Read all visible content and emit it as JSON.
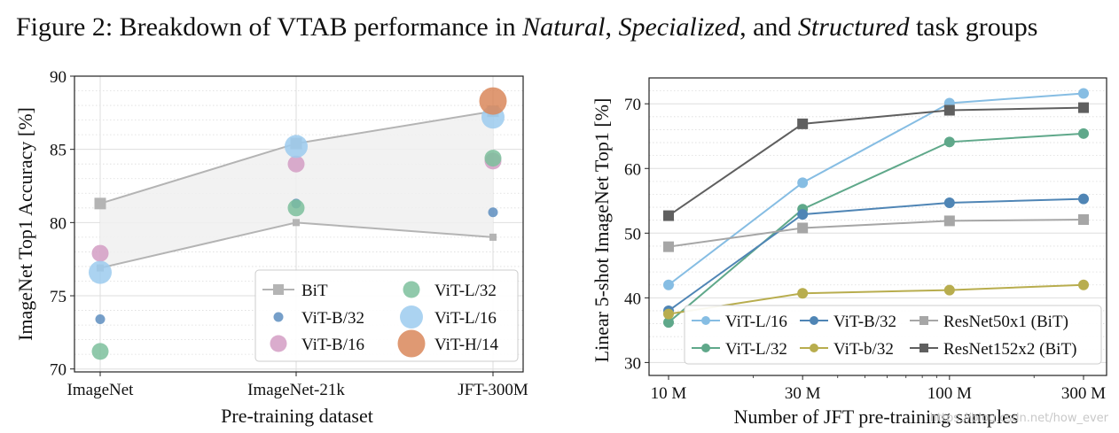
{
  "figure_title": {
    "prefix": "Figure 2: Breakdown of VTAB performance in ",
    "natural": "Natural",
    "sep1": ", ",
    "specialized": "Specialized",
    "sep2": ", and ",
    "structured": "Structured",
    "suffix": " task groups"
  },
  "watermark": "https://blog.csdn.net/how_ever",
  "chart_data": [
    {
      "type": "scatter",
      "title": "",
      "xlabel": "Pre-training dataset",
      "ylabel": "ImageNet Top1 Accuracy [%]",
      "categories": [
        "ImageNet",
        "ImageNet-21k",
        "JFT-300M"
      ],
      "ylim": [
        69.8,
        90
      ],
      "yticks": [
        70,
        75,
        80,
        85,
        90
      ],
      "grid": true,
      "legend_position": "lower-right",
      "bit_band": {
        "name": "BiT",
        "upper": [
          81.3,
          85.4,
          87.6
        ],
        "lower": [
          76.9,
          80.0,
          79.0
        ]
      },
      "series": [
        {
          "name": "BiT",
          "marker": "square",
          "color": "#b4b4b4",
          "values": [
            81.3,
            85.4,
            87.6
          ]
        },
        {
          "name": "ViT-B/32",
          "marker": "circle",
          "size": "small",
          "color": "#5e8ebf",
          "values": [
            73.4,
            81.3,
            80.7
          ]
        },
        {
          "name": "ViT-B/16",
          "marker": "circle",
          "size": "medium",
          "color": "#d39dc4",
          "values": [
            77.9,
            84.0,
            84.2
          ]
        },
        {
          "name": "ViT-L/32",
          "marker": "circle",
          "size": "medium",
          "color": "#7cbf9c",
          "values": [
            71.2,
            81.0,
            84.4
          ]
        },
        {
          "name": "ViT-L/16",
          "marker": "circle",
          "size": "large",
          "color": "#9ccbee",
          "values": [
            76.6,
            85.2,
            87.2
          ]
        },
        {
          "name": "ViT-H/14",
          "marker": "circle",
          "size": "xlarge",
          "color": "#d9875a",
          "values": [
            null,
            null,
            88.3
          ]
        }
      ],
      "legend": [
        "BiT",
        "ViT-L/32",
        "ViT-B/32",
        "ViT-L/16",
        "ViT-B/16",
        "ViT-H/14"
      ]
    },
    {
      "type": "line",
      "title": "",
      "xlabel": "Number of JFT pre-training samples",
      "ylabel": "Linear 5-shot ImageNet Top1 [%]",
      "x": [
        10,
        30,
        100,
        300
      ],
      "xscale": "log",
      "xtick_labels": [
        "10 M",
        "30 M",
        "100 M",
        "300 M"
      ],
      "ylim": [
        28,
        74
      ],
      "yticks": [
        30,
        40,
        50,
        60,
        70
      ],
      "grid": true,
      "legend_position": "lower-right",
      "series": [
        {
          "name": "ViT-L/16",
          "marker": "circle",
          "color": "#86bde3",
          "values": [
            42.0,
            57.8,
            70.1,
            71.6
          ]
        },
        {
          "name": "ViT-L/32",
          "marker": "circle",
          "color": "#5fa88a",
          "values": [
            36.2,
            53.7,
            64.1,
            65.4
          ]
        },
        {
          "name": "ViT-B/32",
          "marker": "circle",
          "color": "#4f85b5",
          "values": [
            38.0,
            52.9,
            54.7,
            55.3
          ]
        },
        {
          "name": "ViT-b/32",
          "marker": "circle",
          "color": "#b8ad4e",
          "values": [
            37.5,
            40.7,
            41.2,
            42.0
          ]
        },
        {
          "name": "ResNet50x1 (BiT)",
          "marker": "square",
          "color": "#a6a6a6",
          "values": [
            47.9,
            50.8,
            51.9,
            52.1
          ]
        },
        {
          "name": "ResNet152x2 (BiT)",
          "marker": "square",
          "color": "#5f5f5f",
          "values": [
            52.7,
            66.9,
            69.0,
            69.4
          ]
        }
      ],
      "legend": [
        "ViT-L/16",
        "ViT-B/32",
        "ResNet50x1 (BiT)",
        "ViT-L/32",
        "ViT-b/32",
        "ResNet152x2 (BiT)"
      ]
    }
  ]
}
